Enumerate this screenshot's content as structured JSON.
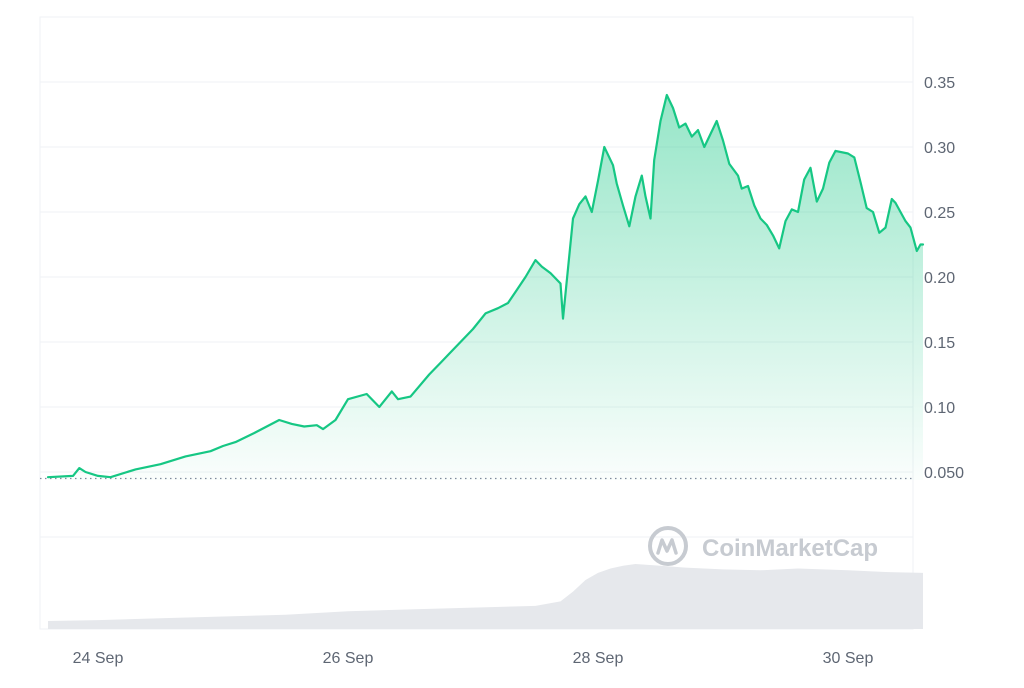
{
  "watermark": {
    "text": "CoinMarketCap",
    "icon": "coinmarketcap-logo-icon"
  },
  "colors": {
    "line": "#16c784",
    "area_top": "#16c784",
    "grid": "#eff2f5",
    "volume": "#e6e8ec",
    "axis_text": "#5e6673",
    "baseline": "#808a9d",
    "watermark": "#c7cbd1"
  },
  "chart_data": {
    "type": "area",
    "title": "",
    "xlabel": "",
    "ylabel": "",
    "x_tick_labels": [
      "24 Sep",
      "26 Sep",
      "28 Sep",
      "30 Sep"
    ],
    "x_tick_values": [
      24,
      26,
      28,
      30
    ],
    "y_tick_labels": [
      "0.35",
      "0.30",
      "0.25",
      "0.20",
      "0.15",
      "0.10",
      "0.050"
    ],
    "y_tick_values": [
      0.35,
      0.3,
      0.25,
      0.2,
      0.15,
      0.1,
      0.05
    ],
    "xlim": [
      23.6,
      30.6
    ],
    "ylim": [
      0.045,
      0.4
    ],
    "grid": true,
    "dotted_baseline": 0.045,
    "series": [
      {
        "values_x": [
          23.6,
          23.8,
          23.85,
          23.9,
          24.0,
          24.1,
          24.3,
          24.5,
          24.7,
          24.9,
          25.0,
          25.1,
          25.25,
          25.45,
          25.55,
          25.65,
          25.75,
          25.8,
          25.9,
          26.0,
          26.15,
          26.25,
          26.35,
          26.4,
          26.5,
          26.65,
          26.75,
          26.8,
          26.9,
          27.0,
          27.1,
          27.2,
          27.28,
          27.35,
          27.42,
          27.5,
          27.55,
          27.62,
          27.7,
          27.72,
          27.8,
          27.85,
          27.9,
          27.95,
          28.0,
          28.05,
          28.12,
          28.15,
          28.2,
          28.25,
          28.3,
          28.35,
          28.38,
          28.42,
          28.45,
          28.5,
          28.55,
          28.6,
          28.65,
          28.7,
          28.75,
          28.8,
          28.85,
          28.9,
          28.95,
          29.0,
          29.05,
          29.12,
          29.15,
          29.2,
          29.25,
          29.3,
          29.35,
          29.4,
          29.45,
          29.5,
          29.55,
          29.6,
          29.65,
          29.7,
          29.75,
          29.8,
          29.85,
          29.9,
          30.0,
          30.05,
          30.1,
          30.15,
          30.2,
          30.25,
          30.3,
          30.35,
          30.38,
          30.42,
          30.46,
          30.5,
          30.55,
          30.58,
          30.6
        ],
        "values": [
          0.046,
          0.047,
          0.053,
          0.05,
          0.047,
          0.046,
          0.052,
          0.056,
          0.062,
          0.066,
          0.07,
          0.073,
          0.08,
          0.09,
          0.087,
          0.085,
          0.086,
          0.083,
          0.09,
          0.106,
          0.11,
          0.1,
          0.112,
          0.106,
          0.108,
          0.125,
          0.135,
          0.14,
          0.15,
          0.16,
          0.172,
          0.176,
          0.18,
          0.19,
          0.2,
          0.213,
          0.208,
          0.203,
          0.195,
          0.168,
          0.245,
          0.256,
          0.262,
          0.25,
          0.274,
          0.3,
          0.286,
          0.272,
          0.255,
          0.239,
          0.262,
          0.278,
          0.262,
          0.245,
          0.29,
          0.32,
          0.34,
          0.33,
          0.315,
          0.318,
          0.308,
          0.313,
          0.3,
          0.31,
          0.32,
          0.305,
          0.287,
          0.278,
          0.268,
          0.27,
          0.255,
          0.245,
          0.24,
          0.232,
          0.222,
          0.243,
          0.252,
          0.25,
          0.275,
          0.284,
          0.258,
          0.268,
          0.288,
          0.297,
          0.295,
          0.292,
          0.273,
          0.253,
          0.25,
          0.234,
          0.238,
          0.26,
          0.257,
          0.25,
          0.243,
          0.238,
          0.22,
          0.225,
          0.225
        ]
      }
    ],
    "volume_series": {
      "values_x": [
        23.6,
        24.0,
        24.5,
        25.0,
        25.5,
        26.0,
        26.5,
        27.0,
        27.5,
        27.7,
        27.8,
        27.9,
        28.0,
        28.1,
        28.2,
        28.3,
        28.5,
        28.7,
        29.0,
        29.3,
        29.6,
        30.0,
        30.3,
        30.6
      ],
      "values": [
        0.09,
        0.1,
        0.12,
        0.14,
        0.16,
        0.2,
        0.22,
        0.24,
        0.26,
        0.31,
        0.42,
        0.55,
        0.63,
        0.68,
        0.71,
        0.73,
        0.71,
        0.69,
        0.67,
        0.66,
        0.68,
        0.66,
        0.64,
        0.63
      ]
    }
  }
}
